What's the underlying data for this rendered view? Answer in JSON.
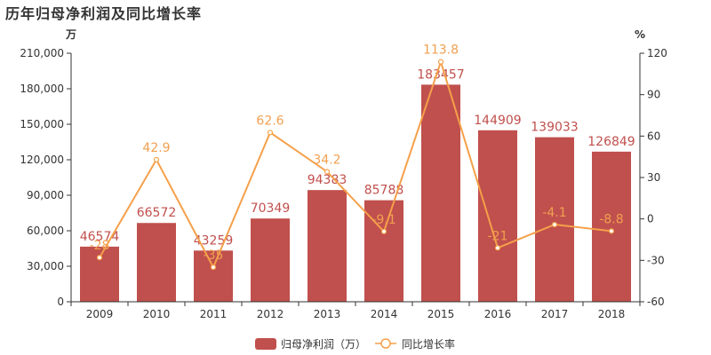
{
  "title": "历年归母净利润及同比增长率",
  "colors": {
    "bar": "#c0504d",
    "line": "#f5a04a",
    "axis": "#333333"
  },
  "chart_data": {
    "type": "bar",
    "categories": [
      "2009",
      "2010",
      "2011",
      "2012",
      "2013",
      "2014",
      "2015",
      "2016",
      "2017",
      "2018"
    ],
    "series": [
      {
        "name": "归母净利润（万）",
        "type": "bar",
        "axis": "left",
        "values": [
          46574,
          66572,
          43259,
          70349,
          94383,
          85788,
          183457,
          144909,
          139033,
          126849
        ],
        "labels": [
          "46574",
          "66572",
          "43259",
          "70349",
          "94383",
          "85788",
          "183457",
          "144909",
          "139033",
          "126849"
        ]
      },
      {
        "name": "同比增长率",
        "type": "line",
        "axis": "right",
        "values": [
          -28,
          42.9,
          -35,
          62.6,
          34.2,
          -9.1,
          113.8,
          -21,
          -4.1,
          -8.8
        ],
        "labels": [
          "-28",
          "42.9",
          "-35",
          "62.6",
          "34.2",
          "-9.1",
          "113.8",
          "-21",
          "-4.1",
          "-8.8"
        ]
      }
    ],
    "left_axis": {
      "unit": "万",
      "ylim": [
        0,
        210000
      ],
      "ticks": [
        "0",
        "30,000",
        "60,000",
        "90,000",
        "120,000",
        "150,000",
        "180,000",
        "210,000"
      ]
    },
    "right_axis": {
      "unit": "%",
      "ylim": [
        -60,
        120
      ],
      "ticks": [
        "-60",
        "-30",
        "0",
        "30",
        "60",
        "90",
        "120"
      ]
    },
    "legend": "bottom-center",
    "grid": false
  }
}
